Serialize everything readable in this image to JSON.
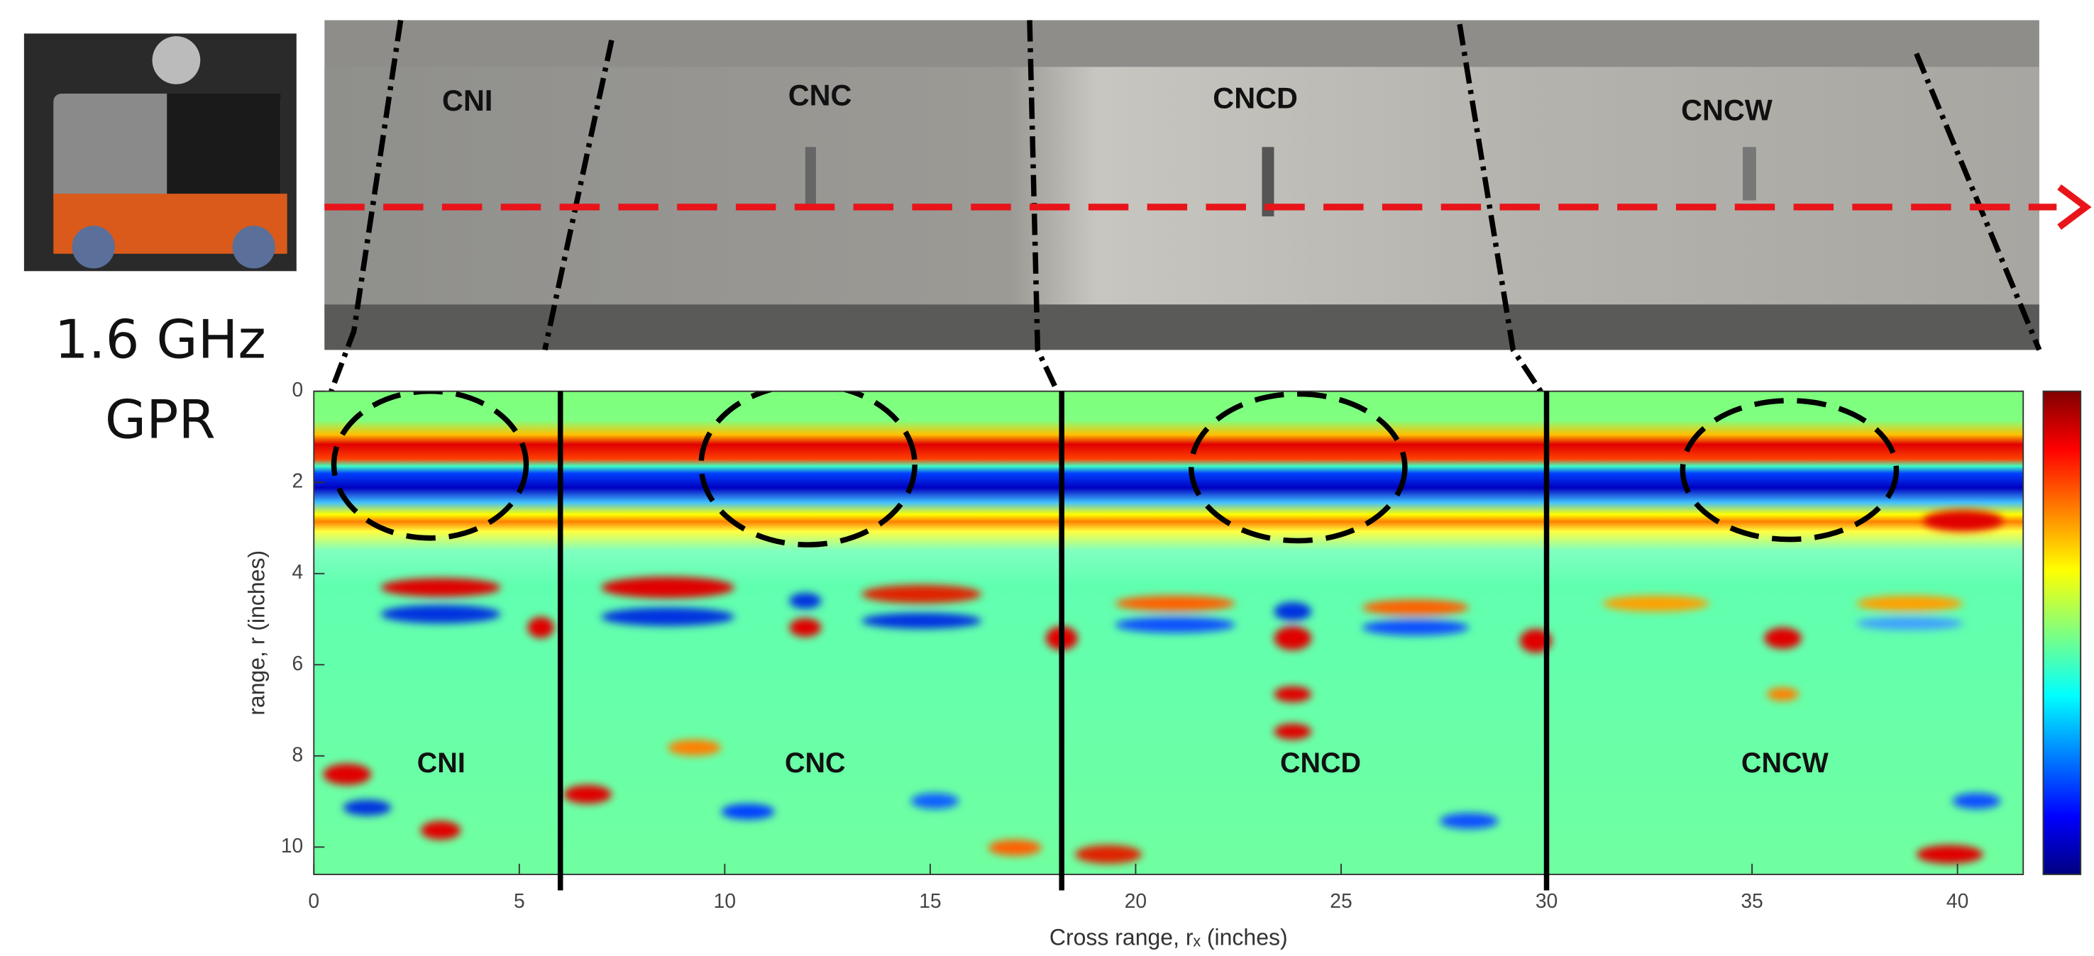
{
  "device": {
    "line1": "1.6 GHz",
    "line2": "GPR"
  },
  "photo": {
    "labels": [
      "CNI",
      "CNC",
      "CNCD",
      "CNCW"
    ]
  },
  "chart_data": {
    "type": "image",
    "x_label": "Cross range, rₓ (inches)",
    "y_label": "range, r (inches)",
    "xlim": [
      0,
      41.6
    ],
    "ylim": [
      0,
      10.6
    ],
    "y_inverted": true,
    "xticks": [
      0,
      5,
      10,
      15,
      20,
      25,
      30,
      35,
      40
    ],
    "yticks": [
      0,
      2,
      4,
      6,
      8,
      10
    ],
    "boundaries": [
      6,
      18.2,
      30
    ],
    "regions": {
      "labels": [
        "CNI",
        "CNC",
        "CNCD",
        "CNCW"
      ],
      "x": [
        3.1,
        12.2,
        24.5,
        35.8
      ],
      "y": [
        8.2,
        8.2,
        8.2,
        8.2
      ]
    }
  }
}
